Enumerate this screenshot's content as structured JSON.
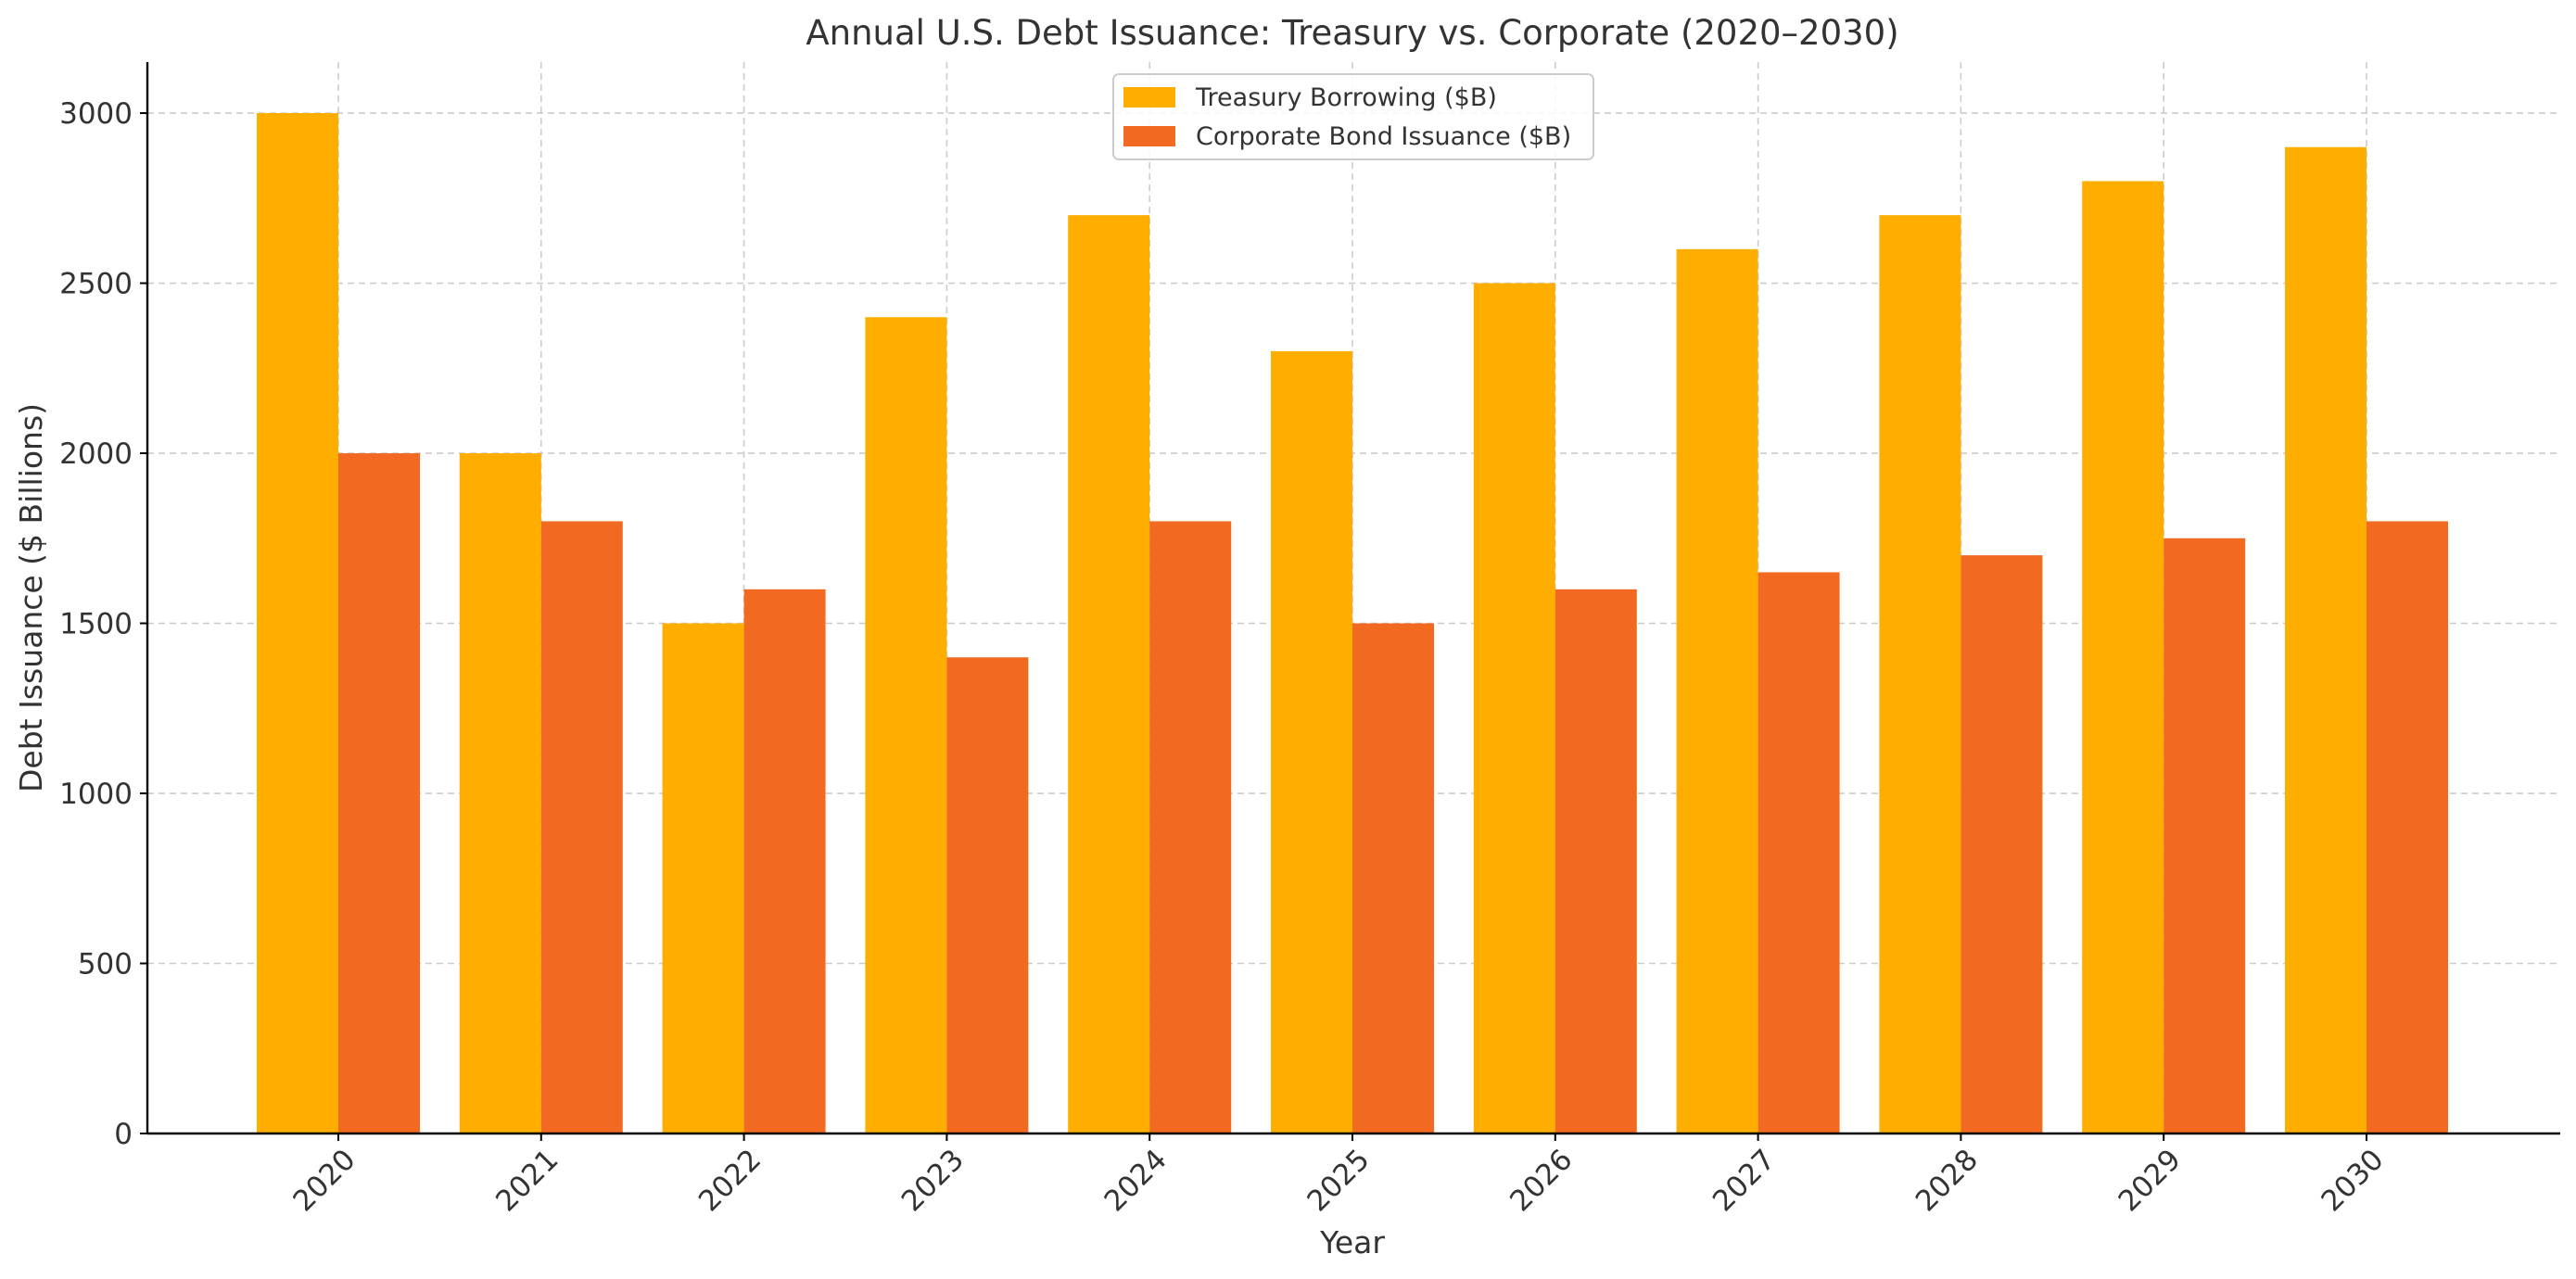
{
  "chart_data": {
    "type": "bar",
    "title": "Annual U.S. Debt Issuance: Treasury vs. Corporate (2020–2030)",
    "xlabel": "Year",
    "ylabel": "Debt Issuance ($ Billions)",
    "categories": [
      "2020",
      "2021",
      "2022",
      "2023",
      "2024",
      "2025",
      "2026",
      "2027",
      "2028",
      "2029",
      "2030"
    ],
    "series": [
      {
        "name": "Treasury Borrowing ($B)",
        "color": "#FFAE00",
        "values": [
          3000,
          2000,
          1500,
          2400,
          2700,
          2300,
          2500,
          2600,
          2700,
          2800,
          2900
        ]
      },
      {
        "name": "Corporate Bond Issuance ($B)",
        "color": "#F26A22",
        "values": [
          2000,
          1800,
          1600,
          1400,
          1800,
          1500,
          1600,
          1650,
          1700,
          1750,
          1800
        ]
      }
    ],
    "ylim": [
      0,
      3150
    ],
    "yticks": [
      0,
      500,
      1000,
      1500,
      2000,
      2500,
      3000
    ],
    "grid": true,
    "legend_position": "top-center"
  }
}
